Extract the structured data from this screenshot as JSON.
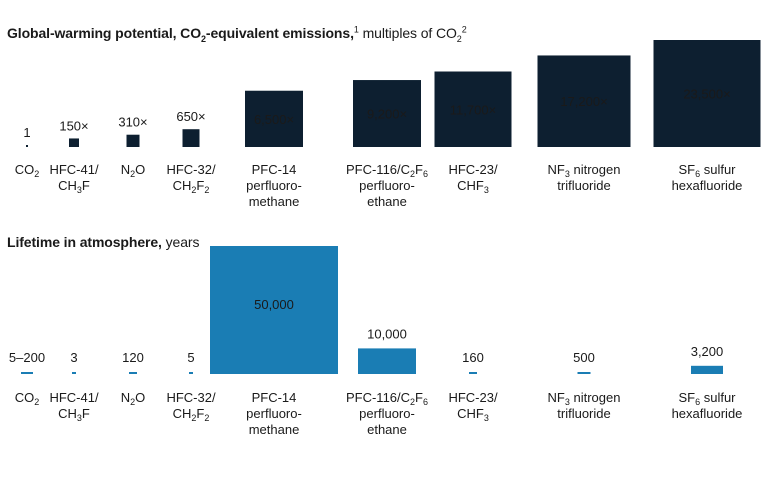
{
  "chart_data": [
    {
      "type": "bar",
      "title": "Global-warming potential, CO2-equivalent emissions,",
      "title_bold_parts": [
        "Global-warming potential, CO",
        "2",
        "-equivalent emissions,"
      ],
      "title_note": "1",
      "subtitle_parts": [
        "multiples of CO",
        "2",
        "2"
      ],
      "categories": [
        "CO2",
        "HFC-41/ CH3F",
        "N2O",
        "HFC-32/ CH2F2",
        "PFC-14 perfluoro- methane",
        "PFC-116/C2F6 perfluoro- ethane",
        "HFC-23/ CHF3",
        "NF3 nitrogen trifluoride",
        "SF6 sulfur hexafluoride"
      ],
      "values": [
        1,
        150,
        310,
        650,
        6500,
        9200,
        11700,
        17200,
        23500
      ],
      "data_labels": [
        "1",
        "150×",
        "310×",
        "650×",
        "6,500×",
        "9,200×",
        "11,700×",
        "17,200×",
        "23,500×"
      ],
      "bar_color": "#0d1f30"
    },
    {
      "type": "bar",
      "title": "Lifetime in atmosphere,",
      "subtitle": "years",
      "categories": [
        "CO2",
        "HFC-41/ CH3F",
        "N2O",
        "HFC-32/ CH2F2",
        "PFC-14 perfluoro- methane",
        "PFC-116/C2F6 perfluoro- ethane",
        "HFC-23/ CHF3",
        "NF3 nitrogen trifluoride",
        "SF6 sulfur hexafluoride"
      ],
      "values": [
        200,
        3,
        120,
        5,
        50000,
        10000,
        160,
        500,
        3200
      ],
      "data_labels": [
        "5–200",
        "3",
        "120",
        "5",
        "50,000",
        "10,000",
        "160",
        "500",
        "3,200"
      ],
      "bar_color": "#1a7db4"
    }
  ],
  "category_labels": [
    [
      [
        {
          "t": "CO"
        },
        {
          "t": "2",
          "sub": true
        }
      ]
    ],
    [
      [
        {
          "t": "HFC-41/"
        }
      ],
      [
        {
          "t": "CH"
        },
        {
          "t": "3",
          "sub": true
        },
        {
          "t": "F"
        }
      ]
    ],
    [
      [
        {
          "t": "N"
        },
        {
          "t": "2",
          "sub": true
        },
        {
          "t": "O"
        }
      ]
    ],
    [
      [
        {
          "t": "HFC-32/"
        }
      ],
      [
        {
          "t": "CH"
        },
        {
          "t": "2",
          "sub": true
        },
        {
          "t": "F"
        },
        {
          "t": "2",
          "sub": true
        }
      ]
    ],
    [
      [
        {
          "t": "PFC-14"
        }
      ],
      [
        {
          "t": "perfluoro-"
        }
      ],
      [
        {
          "t": "methane"
        }
      ]
    ],
    [
      [
        {
          "t": "PFC-116/C"
        },
        {
          "t": "2",
          "sub": true
        },
        {
          "t": "F"
        },
        {
          "t": "6",
          "sub": true
        }
      ],
      [
        {
          "t": "perfluoro-"
        }
      ],
      [
        {
          "t": "ethane"
        }
      ]
    ],
    [
      [
        {
          "t": "HFC-23/"
        }
      ],
      [
        {
          "t": "CHF"
        },
        {
          "t": "3",
          "sub": true
        }
      ]
    ],
    [
      [
        {
          "t": "NF"
        },
        {
          "t": "3",
          "sub": true
        },
        {
          "t": " nitrogen"
        }
      ],
      [
        {
          "t": "trifluoride"
        }
      ]
    ],
    [
      [
        {
          "t": "SF"
        },
        {
          "t": "6",
          "sub": true
        },
        {
          "t": " sulfur"
        }
      ],
      [
        {
          "t": "hexafluoride"
        }
      ]
    ]
  ]
}
